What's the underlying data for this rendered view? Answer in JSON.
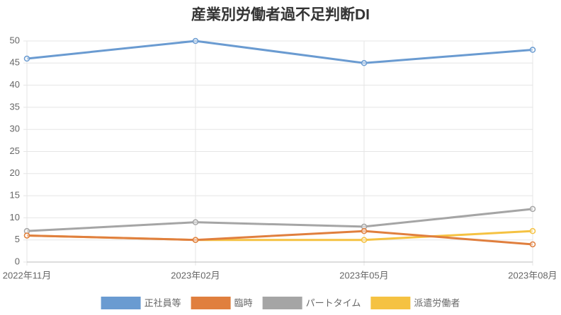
{
  "chart_data": {
    "type": "line",
    "title": "産業別労働者過不足判断DI",
    "categories": [
      "2022年11月",
      "2023年02月",
      "2023年05月",
      "2023年08月"
    ],
    "series": [
      {
        "name": "正社員等",
        "color": "#6a9bd1",
        "values": [
          46,
          50,
          45,
          48
        ]
      },
      {
        "name": "臨時",
        "color": "#e07f3e",
        "values": [
          6,
          5,
          7,
          4
        ]
      },
      {
        "name": "パートタイム",
        "color": "#a5a5a5",
        "values": [
          7,
          9,
          8,
          12
        ]
      },
      {
        "name": "派遣労働者",
        "color": "#f5c242",
        "values": [
          6,
          5,
          5,
          7
        ]
      }
    ],
    "ylim": [
      0,
      50
    ],
    "yticks": [
      0,
      5,
      10,
      15,
      20,
      25,
      30,
      35,
      40,
      45,
      50
    ],
    "grid": true
  }
}
